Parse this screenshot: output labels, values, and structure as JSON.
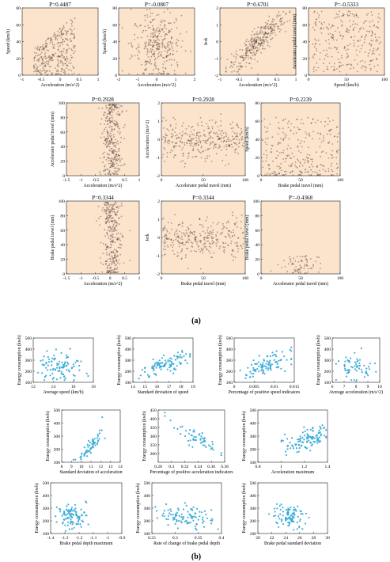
{
  "caption_a": "(a)",
  "caption_b": "(b)",
  "colors": {
    "panel_a_bg": "#fbe3cc",
    "panel_a_point": "#4a3a33",
    "panel_b_point": "#2fa7d6"
  },
  "chart_data": [
    {
      "type": "scatter",
      "title": "P=0.4487",
      "xlabel": "Acceleration (m/s^2)",
      "ylabel": "Speed (km/h)",
      "xlim": [
        -1,
        1
      ],
      "ylim": [
        0,
        80
      ],
      "xticks": [
        -1,
        -0.5,
        0,
        0.5,
        1
      ],
      "yticks": [
        0,
        20,
        40,
        60,
        80
      ],
      "pattern": "wedge",
      "n": 320
    },
    {
      "type": "scatter",
      "title": "P=-0.0807",
      "xlabel": "Acceleration (m/s^2)",
      "ylabel": "Speed (km/h)",
      "xlim": [
        -2,
        2
      ],
      "ylim": [
        0,
        80
      ],
      "xticks": [
        -2,
        -1,
        0,
        1,
        2
      ],
      "yticks": [
        0,
        20,
        40,
        60,
        80
      ],
      "pattern": "centered_spread",
      "n": 320
    },
    {
      "type": "scatter",
      "title": "P=0.6701",
      "xlabel": "Acceleration (m/s^2)",
      "ylabel": "Jerk",
      "xlim": [
        -1,
        1
      ],
      "ylim": [
        -2,
        2
      ],
      "xticks": [
        -1,
        -0.5,
        0,
        0.5,
        1
      ],
      "yticks": [
        -2,
        -1,
        0,
        1,
        2
      ],
      "pattern": "diagonal",
      "n": 320
    },
    {
      "type": "scatter",
      "title": "P=-0.5333",
      "xlabel": "Speed (km/h)",
      "ylabel": "Accelerator pedal travel (mm)",
      "xlim": [
        0,
        100
      ],
      "ylim": [
        0,
        80
      ],
      "xticks": [
        0,
        50,
        100
      ],
      "yticks": [
        0,
        20,
        40,
        60,
        80
      ],
      "pattern": "uniform",
      "n": 280
    },
    {
      "type": "scatter",
      "title": "P=0.2928",
      "xlabel": "Acceleration (m/s^2)",
      "ylabel": "Accelerator pedal travel (mm)",
      "xlim": [
        -1.5,
        1
      ],
      "ylim": [
        0,
        100
      ],
      "xticks": [
        -1.5,
        -1,
        -0.5,
        0,
        0.5,
        1
      ],
      "yticks": [
        0,
        20,
        40,
        60,
        80,
        100
      ],
      "pattern": "vertical_band",
      "n": 320
    },
    {
      "type": "scatter",
      "title": "P=0.2928",
      "xlabel": "Accelerator pedal travel (mm)",
      "ylabel": "Acceleration (m/s^2)",
      "xlim": [
        0,
        100
      ],
      "ylim": [
        -2,
        2
      ],
      "xticks": [
        0,
        50,
        100
      ],
      "yticks": [
        -2,
        -1,
        0,
        1,
        2
      ],
      "pattern": "horizontal_band",
      "n": 320
    },
    {
      "type": "scatter",
      "title": "P=0.2239",
      "xlabel": "Brake pedal travel (mm)",
      "ylabel": "Speed (km/h)",
      "xlim": [
        0,
        100
      ],
      "ylim": [
        0,
        80
      ],
      "xticks": [
        0,
        50,
        100
      ],
      "yticks": [
        0,
        20,
        40,
        60,
        80
      ],
      "pattern": "bottom_heavy",
      "n": 280
    },
    {
      "type": "scatter",
      "title": "P=0.3344",
      "xlabel": "Acceleration (m/s^2)",
      "ylabel": "Brake pedal travel (mm)",
      "xlim": [
        -1.5,
        1
      ],
      "ylim": [
        0,
        100
      ],
      "xticks": [
        -1.5,
        -1,
        -0.5,
        0,
        0.5,
        1
      ],
      "yticks": [
        0,
        20,
        40,
        60,
        80,
        100
      ],
      "pattern": "vertical_band",
      "n": 300
    },
    {
      "type": "scatter",
      "title": "P=0.3344",
      "xlabel": "Brake pedal travel (mm)",
      "ylabel": "Jerk",
      "xlim": [
        0,
        100
      ],
      "ylim": [
        -2,
        2
      ],
      "xticks": [
        0,
        50,
        100
      ],
      "yticks": [
        -2,
        -1,
        0,
        1,
        2
      ],
      "pattern": "horizontal_band",
      "n": 300
    },
    {
      "type": "scatter",
      "title": "P=-0.4368",
      "xlabel": "Accelerator pedal travel (mm)",
      "ylabel": "Brake pedal travel (mm)",
      "xlim": [
        0,
        100
      ],
      "ylim": [
        0,
        100
      ],
      "xticks": [
        0,
        50,
        100
      ],
      "yticks": [
        0,
        20,
        40,
        60,
        80,
        100
      ],
      "pattern": "sparse_low",
      "n": 70
    },
    {
      "type": "scatter",
      "title": "",
      "xlabel": "Average speed (km/h)",
      "ylabel": "Energy consumption (kwh)",
      "xlim": [
        12,
        18
      ],
      "ylim": [
        100,
        500
      ],
      "xticks": [
        12,
        14,
        16,
        18
      ],
      "yticks": [
        100,
        200,
        300,
        400,
        500
      ],
      "pattern": "flat_cloud",
      "n": 95
    },
    {
      "type": "scatter",
      "title": "",
      "xlabel": "Standard deviation of speed",
      "ylabel": "Energy consumption (kwh)",
      "xlim": [
        14,
        19
      ],
      "ylim": [
        100,
        500
      ],
      "xticks": [
        14,
        15,
        16,
        17,
        18,
        19
      ],
      "yticks": [
        100,
        200,
        300,
        400,
        500
      ],
      "pattern": "rising",
      "n": 95
    },
    {
      "type": "scatter",
      "title": "",
      "xlabel": "Percentage of positive speed indicators",
      "ylabel": "Energy consumption (kwh)",
      "xlim": [
        0,
        0.015
      ],
      "ylim": [
        100,
        500
      ],
      "xticks": [
        0,
        0.005,
        0.01,
        0.015
      ],
      "yticks": [
        100,
        200,
        300,
        400,
        500
      ],
      "pattern": "rising",
      "n": 95
    },
    {
      "type": "scatter",
      "title": "",
      "xlabel": "Average acceleration (m/s^2)",
      "ylabel": "Energy consumption (kwh)",
      "xlim": [
        6,
        10
      ],
      "ylim": [
        100,
        500
      ],
      "xticks": [
        6,
        7,
        8,
        9,
        10
      ],
      "yticks": [
        100,
        200,
        300,
        400,
        500
      ],
      "pattern": "flat_cloud",
      "n": 60
    },
    {
      "type": "scatter",
      "title": "",
      "xlabel": "Standard deviation of acceleration",
      "ylabel": "Energy consumption (kwh)",
      "xlim": [
        8,
        14
      ],
      "ylim": [
        100,
        500
      ],
      "xticks": [
        8,
        9,
        10,
        11,
        12,
        13,
        14
      ],
      "yticks": [
        100,
        200,
        300,
        400,
        500
      ],
      "pattern": "steep_rising",
      "n": 60
    },
    {
      "type": "scatter",
      "title": "",
      "xlabel": "Percentage of positive acceleration indicators",
      "ylabel": "Energy consumption (kwh)",
      "xlim": [
        0.28,
        0.38
      ],
      "ylim": [
        150,
        450
      ],
      "xticks": [
        0.28,
        0.3,
        0.32,
        0.34,
        0.36,
        0.38
      ],
      "yticks": [
        200,
        250,
        300,
        350,
        400,
        450
      ],
      "pattern": "falling",
      "n": 55
    },
    {
      "type": "scatter",
      "title": "",
      "xlabel": "Acceleration maximum",
      "ylabel": "Energy consumption (kwh)",
      "xlim": [
        0.8,
        1.4
      ],
      "ylim": [
        100,
        500
      ],
      "xticks": [
        0.8,
        1,
        1.2,
        1.4
      ],
      "yticks": [
        100,
        200,
        300,
        400,
        500
      ],
      "pattern": "rising_right",
      "n": 110
    },
    {
      "type": "scatter",
      "title": "",
      "xlabel": "Brake pedal depth maximum",
      "ylabel": "Energy consumption (kwh)",
      "xlim": [
        -1.4,
        -0.9
      ],
      "ylim": [
        100,
        500
      ],
      "xticks": [
        -1.4,
        -1.3,
        -1.2,
        -1.1,
        -1,
        -0.9
      ],
      "yticks": [
        100,
        200,
        300,
        400,
        500
      ],
      "pattern": "left_cluster",
      "n": 95
    },
    {
      "type": "scatter",
      "title": "",
      "xlabel": "Rate of change of brake pedal depth",
      "ylabel": "Energy consumption (kwh)",
      "xlim": [
        0.25,
        0.4
      ],
      "ylim": [
        100,
        500
      ],
      "xticks": [
        0.25,
        0.3,
        0.35,
        0.4
      ],
      "yticks": [
        100,
        200,
        300,
        400,
        500
      ],
      "pattern": "falling_soft",
      "n": 95
    },
    {
      "type": "scatter",
      "title": "",
      "xlabel": "Brake pedal standard deviation",
      "ylabel": "Energy consumption (kwh)",
      "xlim": [
        20,
        30
      ],
      "ylim": [
        100,
        500
      ],
      "xticks": [
        20,
        22,
        24,
        26,
        28,
        30
      ],
      "yticks": [
        100,
        200,
        300,
        400,
        500
      ],
      "pattern": "mid_cluster",
      "n": 95
    }
  ]
}
